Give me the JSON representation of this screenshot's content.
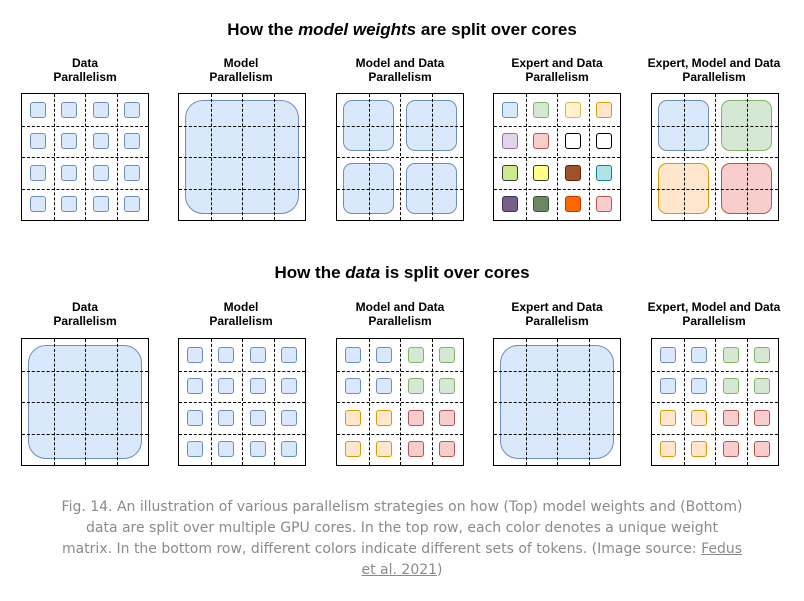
{
  "titles": {
    "top": {
      "pre": "How the ",
      "em": "model weights",
      "post": " are split over cores"
    },
    "bottom": {
      "pre": "How the ",
      "em": "data",
      "post": " is split over cores"
    }
  },
  "labels": {
    "data_parallelism": [
      "Data",
      "Parallelism"
    ],
    "model_parallelism": [
      "Model",
      "Parallelism"
    ],
    "model_and_data": [
      "Model and Data",
      "Parallelism"
    ],
    "expert_and_data": [
      "Expert and Data",
      "Parallelism"
    ],
    "expert_model_data": [
      "Expert, Model and Data",
      "Parallelism"
    ]
  },
  "colors": {
    "blue": [
      "#dae8fc",
      "#6c8ebf"
    ],
    "green": [
      "#d5e8d4",
      "#82b366"
    ],
    "yellow": [
      "#fff2cc",
      "#d6b656"
    ],
    "orange": [
      "#ffe6cc",
      "#d79b00"
    ],
    "red": [
      "#f8cecc",
      "#b85450"
    ],
    "purple": [
      "#e1d5e7",
      "#9673a6"
    ],
    "white": [
      "#ffffff",
      "#000000"
    ],
    "lime": [
      "#cdeb8b",
      "#36393d"
    ],
    "brightyellow": [
      "#ffff88",
      "#36393d"
    ],
    "brown": [
      "#a0522d",
      "#6d1f00"
    ],
    "cyan": [
      "#b0e3e6",
      "#0e8088"
    ],
    "darkpurple": [
      "#76608a",
      "#432d57"
    ],
    "darkgreen": [
      "#6d8764",
      "#3a5431"
    ],
    "brightorange": [
      "#fa6800",
      "#c73500"
    ]
  },
  "expert_colors": [
    [
      "blue",
      "green",
      "yellow",
      "orange"
    ],
    [
      "purple",
      "red",
      "white",
      "white"
    ],
    [
      "lime",
      "brightyellow",
      "brown",
      "cyan"
    ],
    [
      "darkpurple",
      "darkgreen",
      "brightorange",
      "red"
    ]
  ],
  "caption": {
    "text": "Fig. 14. An illustration of various parallelism strategies on how (Top) model weights and (Bottom) data are split over multiple GPU cores. In the top row, each color denotes a unique weight matrix. In the bottom row, different colors indicate different sets of tokens. (Image source: ",
    "link": "Fedus et al. 2021",
    "end": ")"
  }
}
